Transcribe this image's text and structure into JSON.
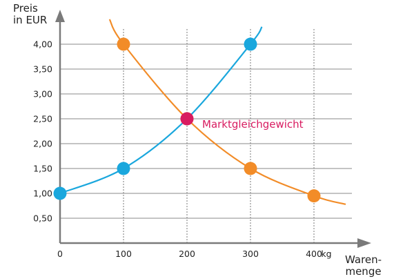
{
  "chart_data": {
    "type": "line",
    "ylabel": "Preis\nin EUR",
    "xlabel": "Waren-\nmenge",
    "x_unit": "kg",
    "xlim": [
      0,
      450
    ],
    "ylim": [
      0,
      4.5
    ],
    "x_ticks": [
      0,
      100,
      200,
      300,
      400
    ],
    "x_tick_labels": [
      "0",
      "100",
      "200",
      "300",
      "400"
    ],
    "y_ticks": [
      0.5,
      1.0,
      1.5,
      2.0,
      2.5,
      3.0,
      3.5,
      4.0
    ],
    "y_tick_labels": [
      "0,50",
      "1,00",
      "1,50",
      "2,00",
      "2,50",
      "3,00",
      "3,50",
      "4,00"
    ],
    "grid": {
      "horizontal": true,
      "vertical_dashed": true
    },
    "series": [
      {
        "color": "#f28c28",
        "curve": [
          [
            78,
            4.5
          ],
          [
            100,
            4.0
          ],
          [
            200,
            2.5
          ],
          [
            300,
            1.5
          ],
          [
            400,
            0.95
          ],
          [
            450,
            0.78
          ]
        ],
        "points": [
          [
            100,
            4.0
          ],
          [
            200,
            2.5
          ],
          [
            300,
            1.5
          ],
          [
            400,
            0.95
          ]
        ]
      },
      {
        "color": "#1aa7dd",
        "curve": [
          [
            0,
            1.0
          ],
          [
            100,
            1.5
          ],
          [
            200,
            2.5
          ],
          [
            300,
            4.0
          ],
          [
            318,
            4.35
          ]
        ],
        "points": [
          [
            0,
            1.0
          ],
          [
            100,
            1.5
          ],
          [
            300,
            4.0
          ]
        ]
      }
    ],
    "equilibrium": {
      "x": 200,
      "y": 2.5,
      "label": "Marktgleichgewicht",
      "color": "#d81b60"
    }
  }
}
